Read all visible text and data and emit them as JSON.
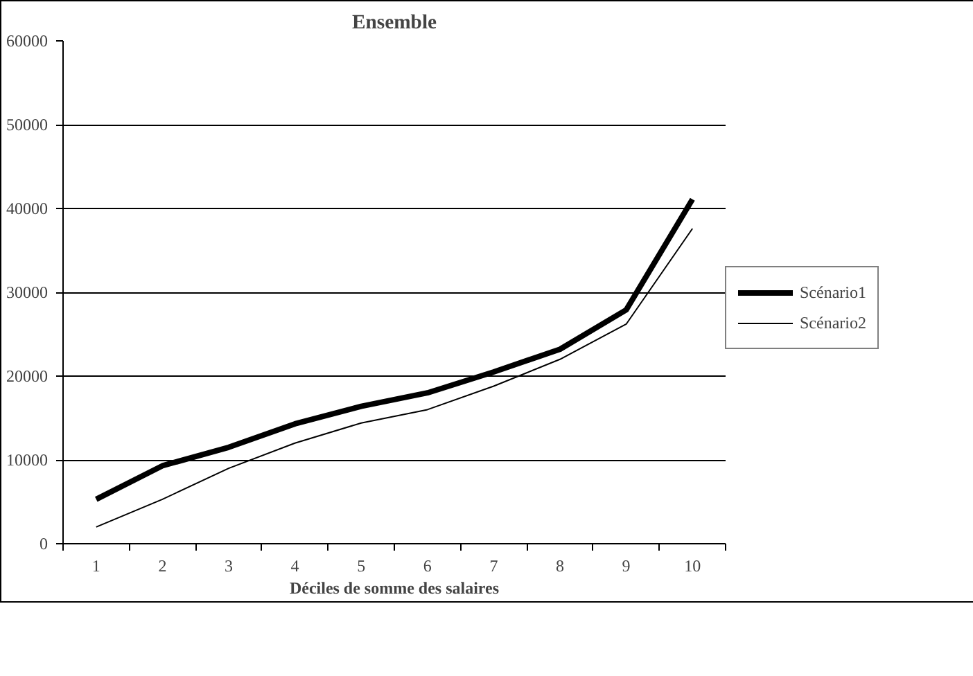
{
  "chart_data": {
    "type": "line",
    "title": "Ensemble",
    "xlabel": "Déciles de somme des salaires",
    "categories": [
      "1",
      "2",
      "3",
      "4",
      "5",
      "6",
      "7",
      "8",
      "9",
      "10"
    ],
    "series": [
      {
        "name": "Scénario1",
        "color": "#000000",
        "values": [
          5300,
          9300,
          11500,
          14300,
          16400,
          18000,
          20500,
          23200,
          27900,
          41100
        ]
      },
      {
        "name": "Scénario2",
        "color": "#000000",
        "values": [
          2000,
          5300,
          9000,
          12000,
          14400,
          16000,
          18800,
          22000,
          26200,
          37600
        ]
      }
    ],
    "ylim": [
      0,
      60000
    ],
    "yticks": [
      0,
      10000,
      20000,
      30000,
      40000,
      50000,
      60000
    ],
    "grid": "y",
    "legend": "right",
    "line_style": "solid",
    "marker": "none"
  }
}
